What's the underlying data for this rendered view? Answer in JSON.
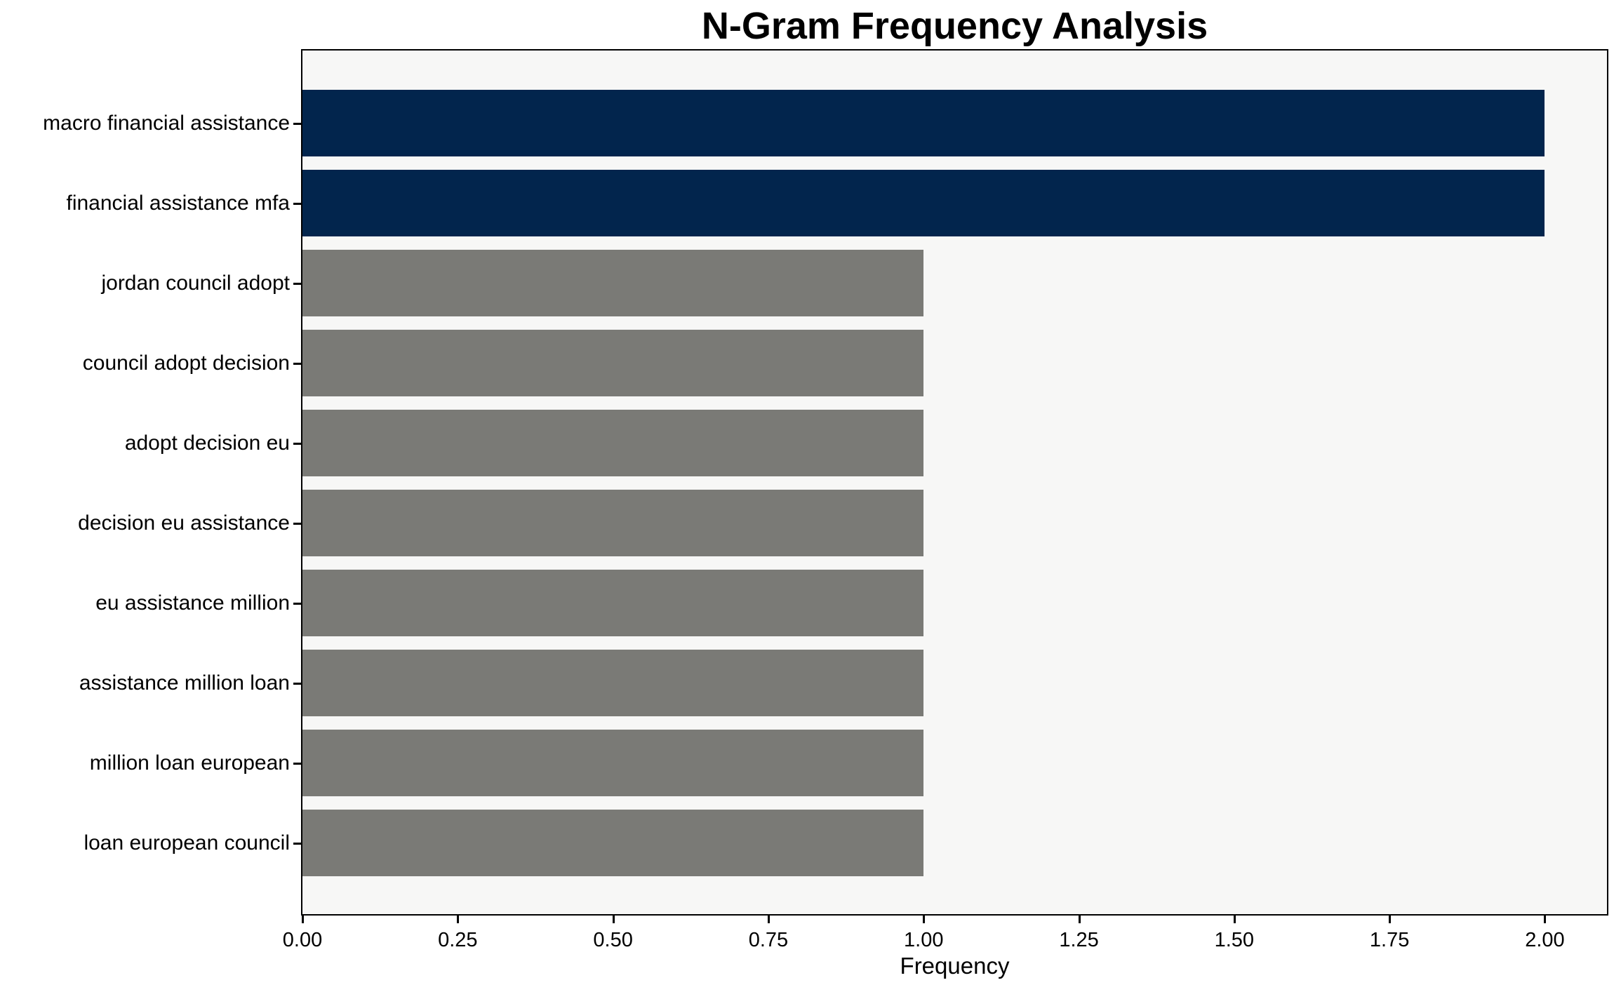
{
  "chart_data": {
    "type": "bar",
    "orientation": "horizontal",
    "title": "N-Gram Frequency Analysis",
    "xlabel": "Frequency",
    "ylabel": "",
    "categories": [
      "macro financial assistance",
      "financial assistance mfa",
      "jordan council adopt",
      "council adopt decision",
      "adopt decision eu",
      "decision eu assistance",
      "eu assistance million",
      "assistance million loan",
      "million loan european",
      "loan european council"
    ],
    "values": [
      2,
      2,
      1,
      1,
      1,
      1,
      1,
      1,
      1,
      1
    ],
    "bar_colors": [
      "#02254d",
      "#02254d",
      "#7a7a76",
      "#7a7a76",
      "#7a7a76",
      "#7a7a76",
      "#7a7a76",
      "#7a7a76",
      "#7a7a76",
      "#7a7a76"
    ],
    "xlim": [
      0,
      2.1
    ],
    "xticks": [
      0,
      0.25,
      0.5,
      0.75,
      1.0,
      1.25,
      1.5,
      1.75,
      2.0
    ],
    "xtick_labels": [
      "0.00",
      "0.25",
      "0.50",
      "0.75",
      "1.00",
      "1.25",
      "1.50",
      "1.75",
      "2.00"
    ],
    "grid": false,
    "legend": "none",
    "colors": {
      "highlight_bar": "#02254d",
      "default_bar": "#7a7a76",
      "plot_background": "#f7f7f6",
      "figure_background": "#ffffff",
      "axis": "#000000",
      "text": "#000000"
    }
  }
}
